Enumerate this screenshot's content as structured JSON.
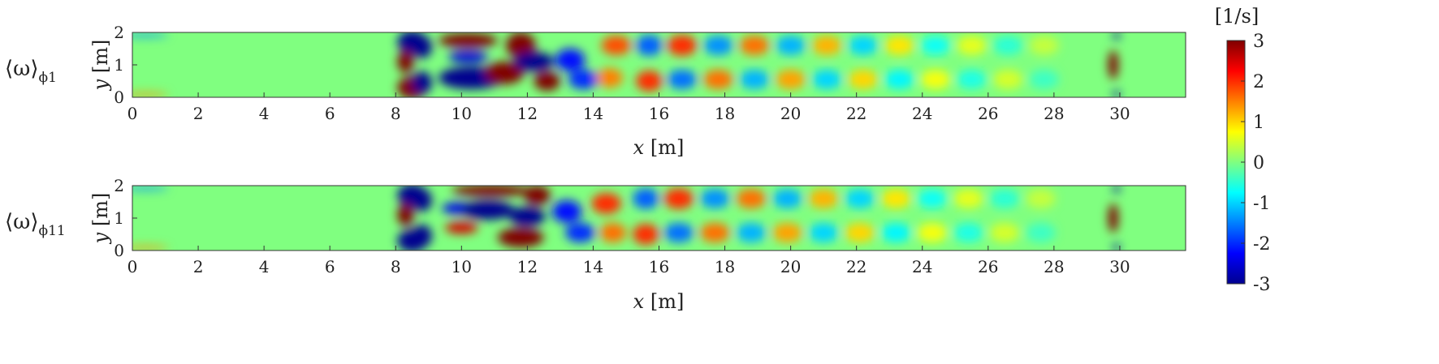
{
  "chart_data": [
    {
      "type": "heatmap",
      "row_label": "⟨ω⟩",
      "row_label_sub": "ϕ1",
      "xlabel_var": "x",
      "xlabel_unit": "[m]",
      "ylabel_var": "y",
      "ylabel_unit": "[m]",
      "xlim": [
        0,
        32
      ],
      "ylim": [
        0,
        2
      ],
      "x_ticks": [
        "0",
        "2",
        "4",
        "6",
        "8",
        "10",
        "12",
        "14",
        "16",
        "18",
        "20",
        "22",
        "24",
        "26",
        "28",
        "30"
      ],
      "x_tick_values": [
        0,
        2,
        4,
        6,
        8,
        10,
        12,
        14,
        16,
        18,
        20,
        22,
        24,
        26,
        28,
        30
      ],
      "y_ticks": [
        "0",
        "1",
        "2"
      ],
      "y_tick_values": [
        0,
        1,
        2
      ],
      "features": [
        {
          "x": 0.4,
          "y": 1.92,
          "value": -1.4,
          "rx": 0.7,
          "ry": 0.06
        },
        {
          "x": 0.4,
          "y": 0.08,
          "value": 1.4,
          "rx": 0.7,
          "ry": 0.06
        },
        {
          "x": 8.5,
          "y": 1.7,
          "value": -3,
          "rx": 0.45,
          "ry": 0.35
        },
        {
          "x": 8.5,
          "y": 0.3,
          "value": 3,
          "rx": 0.45,
          "ry": 0.35
        },
        {
          "x": 8.3,
          "y": 1.1,
          "value": 3,
          "rx": 0.25,
          "ry": 0.35
        },
        {
          "x": 8.8,
          "y": 1.55,
          "value": -3,
          "rx": 0.3,
          "ry": 0.35
        },
        {
          "x": 8.8,
          "y": 0.45,
          "value": -3,
          "rx": 0.3,
          "ry": 0.35
        },
        {
          "x": 10.2,
          "y": 1.75,
          "value": 3,
          "rx": 0.9,
          "ry": 0.22
        },
        {
          "x": 10.2,
          "y": 1.25,
          "value": -2.5,
          "rx": 0.6,
          "ry": 0.18
        },
        {
          "x": 10.3,
          "y": 0.6,
          "value": -3,
          "rx": 1.0,
          "ry": 0.35
        },
        {
          "x": 11.3,
          "y": 0.75,
          "value": 3,
          "rx": 0.6,
          "ry": 0.35
        },
        {
          "x": 11.8,
          "y": 1.6,
          "value": 3,
          "rx": 0.45,
          "ry": 0.4
        },
        {
          "x": 12.2,
          "y": 1.1,
          "value": -3,
          "rx": 0.6,
          "ry": 0.3
        },
        {
          "x": 12.6,
          "y": 0.5,
          "value": 3,
          "rx": 0.4,
          "ry": 0.3
        },
        {
          "x": 13.3,
          "y": 1.15,
          "value": -2.2,
          "rx": 0.45,
          "ry": 0.35
        },
        {
          "x": 13.7,
          "y": 0.55,
          "value": -2,
          "rx": 0.45,
          "ry": 0.3
        },
        {
          "x": 14.7,
          "y": 1.6,
          "value": 1.8,
          "rx": 0.45,
          "ry": 0.3
        },
        {
          "x": 14.5,
          "y": 0.6,
          "value": 1.5,
          "rx": 0.4,
          "ry": 0.3
        },
        {
          "x": 15.7,
          "y": 1.6,
          "value": -1.7,
          "rx": 0.4,
          "ry": 0.32
        },
        {
          "x": 15.7,
          "y": 0.5,
          "value": 2,
          "rx": 0.4,
          "ry": 0.32
        },
        {
          "x": 16.7,
          "y": 1.6,
          "value": 2,
          "rx": 0.45,
          "ry": 0.32
        },
        {
          "x": 16.7,
          "y": 0.55,
          "value": -1.6,
          "rx": 0.45,
          "ry": 0.3
        },
        {
          "x": 17.8,
          "y": 1.6,
          "value": -1.4,
          "rx": 0.45,
          "ry": 0.3
        },
        {
          "x": 17.8,
          "y": 0.55,
          "value": 1.6,
          "rx": 0.45,
          "ry": 0.3
        },
        {
          "x": 18.9,
          "y": 1.6,
          "value": 1.6,
          "rx": 0.45,
          "ry": 0.3
        },
        {
          "x": 18.9,
          "y": 0.55,
          "value": -1.2,
          "rx": 0.45,
          "ry": 0.3
        },
        {
          "x": 20.0,
          "y": 1.6,
          "value": -1.2,
          "rx": 0.45,
          "ry": 0.3
        },
        {
          "x": 20.0,
          "y": 0.55,
          "value": 1.3,
          "rx": 0.45,
          "ry": 0.3
        },
        {
          "x": 21.1,
          "y": 1.6,
          "value": 1.2,
          "rx": 0.45,
          "ry": 0.3
        },
        {
          "x": 21.1,
          "y": 0.55,
          "value": -1.0,
          "rx": 0.45,
          "ry": 0.3
        },
        {
          "x": 22.2,
          "y": 1.6,
          "value": -1.0,
          "rx": 0.45,
          "ry": 0.3
        },
        {
          "x": 22.2,
          "y": 0.55,
          "value": 1.0,
          "rx": 0.45,
          "ry": 0.3
        },
        {
          "x": 23.3,
          "y": 1.6,
          "value": 0.9,
          "rx": 0.45,
          "ry": 0.3
        },
        {
          "x": 23.3,
          "y": 0.55,
          "value": -0.8,
          "rx": 0.45,
          "ry": 0.3
        },
        {
          "x": 24.4,
          "y": 1.6,
          "value": -0.7,
          "rx": 0.45,
          "ry": 0.3
        },
        {
          "x": 24.4,
          "y": 0.55,
          "value": 0.7,
          "rx": 0.45,
          "ry": 0.3
        },
        {
          "x": 25.5,
          "y": 1.6,
          "value": 0.6,
          "rx": 0.45,
          "ry": 0.3
        },
        {
          "x": 25.5,
          "y": 0.55,
          "value": -0.6,
          "rx": 0.45,
          "ry": 0.3
        },
        {
          "x": 26.6,
          "y": 1.6,
          "value": -0.5,
          "rx": 0.45,
          "ry": 0.3
        },
        {
          "x": 26.6,
          "y": 0.55,
          "value": 0.5,
          "rx": 0.45,
          "ry": 0.3
        },
        {
          "x": 27.7,
          "y": 1.6,
          "value": 0.4,
          "rx": 0.45,
          "ry": 0.3
        },
        {
          "x": 27.7,
          "y": 0.55,
          "value": -0.4,
          "rx": 0.45,
          "ry": 0.3
        },
        {
          "x": 29.8,
          "y": 1.0,
          "value": 3,
          "rx": 0.15,
          "ry": 0.45
        },
        {
          "x": 29.9,
          "y": 1.9,
          "value": -3,
          "rx": 0.1,
          "ry": 0.12
        },
        {
          "x": 29.9,
          "y": 0.1,
          "value": -3,
          "rx": 0.1,
          "ry": 0.12
        }
      ]
    },
    {
      "type": "heatmap",
      "row_label": "⟨ω⟩",
      "row_label_sub": "ϕ11",
      "xlabel_var": "x",
      "xlabel_unit": "[m]",
      "ylabel_var": "y",
      "ylabel_unit": "[m]",
      "xlim": [
        0,
        32
      ],
      "ylim": [
        0,
        2
      ],
      "x_ticks": [
        "0",
        "2",
        "4",
        "6",
        "8",
        "10",
        "12",
        "14",
        "16",
        "18",
        "20",
        "22",
        "24",
        "26",
        "28",
        "30"
      ],
      "x_tick_values": [
        0,
        2,
        4,
        6,
        8,
        10,
        12,
        14,
        16,
        18,
        20,
        22,
        24,
        26,
        28,
        30
      ],
      "y_ticks": [
        "0",
        "1",
        "2"
      ],
      "y_tick_values": [
        0,
        1,
        2
      ],
      "features": [
        {
          "x": 0.4,
          "y": 1.92,
          "value": -1.4,
          "rx": 0.7,
          "ry": 0.06
        },
        {
          "x": 0.4,
          "y": 0.08,
          "value": 1.4,
          "rx": 0.7,
          "ry": 0.06
        },
        {
          "x": 8.5,
          "y": 1.7,
          "value": -3,
          "rx": 0.45,
          "ry": 0.35
        },
        {
          "x": 8.5,
          "y": 0.3,
          "value": -3,
          "rx": 0.45,
          "ry": 0.35
        },
        {
          "x": 8.3,
          "y": 1.1,
          "value": 3,
          "rx": 0.25,
          "ry": 0.35
        },
        {
          "x": 8.8,
          "y": 1.55,
          "value": -3,
          "rx": 0.3,
          "ry": 0.35
        },
        {
          "x": 8.8,
          "y": 0.45,
          "value": -3,
          "rx": 0.3,
          "ry": 0.35
        },
        {
          "x": 10.9,
          "y": 1.85,
          "value": 3,
          "rx": 1.2,
          "ry": 0.18
        },
        {
          "x": 9.9,
          "y": 1.3,
          "value": -2.4,
          "rx": 0.5,
          "ry": 0.18
        },
        {
          "x": 10.0,
          "y": 0.7,
          "value": 2.5,
          "rx": 0.5,
          "ry": 0.18
        },
        {
          "x": 10.8,
          "y": 1.25,
          "value": -3,
          "rx": 0.8,
          "ry": 0.3
        },
        {
          "x": 12.0,
          "y": 1.05,
          "value": -3,
          "rx": 0.55,
          "ry": 0.3
        },
        {
          "x": 11.8,
          "y": 0.4,
          "value": 3,
          "rx": 0.7,
          "ry": 0.3
        },
        {
          "x": 12.3,
          "y": 1.7,
          "value": 3,
          "rx": 0.4,
          "ry": 0.3
        },
        {
          "x": 13.2,
          "y": 1.2,
          "value": -2.2,
          "rx": 0.45,
          "ry": 0.35
        },
        {
          "x": 13.6,
          "y": 0.55,
          "value": -2,
          "rx": 0.45,
          "ry": 0.3
        },
        {
          "x": 14.4,
          "y": 1.45,
          "value": 2,
          "rx": 0.45,
          "ry": 0.32
        },
        {
          "x": 14.6,
          "y": 0.55,
          "value": 1.6,
          "rx": 0.4,
          "ry": 0.3
        },
        {
          "x": 15.6,
          "y": 1.6,
          "value": -1.7,
          "rx": 0.4,
          "ry": 0.32
        },
        {
          "x": 15.6,
          "y": 0.5,
          "value": 2,
          "rx": 0.4,
          "ry": 0.32
        },
        {
          "x": 16.6,
          "y": 1.6,
          "value": 2,
          "rx": 0.45,
          "ry": 0.32
        },
        {
          "x": 16.6,
          "y": 0.55,
          "value": -1.6,
          "rx": 0.45,
          "ry": 0.3
        },
        {
          "x": 17.7,
          "y": 1.6,
          "value": -1.4,
          "rx": 0.45,
          "ry": 0.3
        },
        {
          "x": 17.7,
          "y": 0.55,
          "value": 1.6,
          "rx": 0.45,
          "ry": 0.3
        },
        {
          "x": 18.8,
          "y": 1.6,
          "value": 1.6,
          "rx": 0.45,
          "ry": 0.3
        },
        {
          "x": 18.8,
          "y": 0.55,
          "value": -1.2,
          "rx": 0.45,
          "ry": 0.3
        },
        {
          "x": 19.9,
          "y": 1.6,
          "value": -1.2,
          "rx": 0.45,
          "ry": 0.3
        },
        {
          "x": 19.9,
          "y": 0.55,
          "value": 1.3,
          "rx": 0.45,
          "ry": 0.3
        },
        {
          "x": 21.0,
          "y": 1.6,
          "value": 1.2,
          "rx": 0.45,
          "ry": 0.3
        },
        {
          "x": 21.0,
          "y": 0.55,
          "value": -1.0,
          "rx": 0.45,
          "ry": 0.3
        },
        {
          "x": 22.1,
          "y": 1.6,
          "value": -1.0,
          "rx": 0.45,
          "ry": 0.3
        },
        {
          "x": 22.1,
          "y": 0.55,
          "value": 1.0,
          "rx": 0.45,
          "ry": 0.3
        },
        {
          "x": 23.2,
          "y": 1.6,
          "value": 0.9,
          "rx": 0.45,
          "ry": 0.3
        },
        {
          "x": 23.2,
          "y": 0.55,
          "value": -0.8,
          "rx": 0.45,
          "ry": 0.3
        },
        {
          "x": 24.3,
          "y": 1.6,
          "value": -0.7,
          "rx": 0.45,
          "ry": 0.3
        },
        {
          "x": 24.3,
          "y": 0.55,
          "value": 0.7,
          "rx": 0.45,
          "ry": 0.3
        },
        {
          "x": 25.4,
          "y": 1.6,
          "value": 0.6,
          "rx": 0.45,
          "ry": 0.3
        },
        {
          "x": 25.4,
          "y": 0.55,
          "value": -0.6,
          "rx": 0.45,
          "ry": 0.3
        },
        {
          "x": 26.5,
          "y": 1.6,
          "value": -0.5,
          "rx": 0.45,
          "ry": 0.3
        },
        {
          "x": 26.5,
          "y": 0.55,
          "value": 0.5,
          "rx": 0.45,
          "ry": 0.3
        },
        {
          "x": 27.6,
          "y": 1.6,
          "value": 0.4,
          "rx": 0.45,
          "ry": 0.3
        },
        {
          "x": 27.6,
          "y": 0.55,
          "value": -0.4,
          "rx": 0.45,
          "ry": 0.3
        },
        {
          "x": 29.8,
          "y": 1.0,
          "value": 3,
          "rx": 0.15,
          "ry": 0.45
        },
        {
          "x": 29.9,
          "y": 1.9,
          "value": -3,
          "rx": 0.1,
          "ry": 0.12
        },
        {
          "x": 29.9,
          "y": 0.1,
          "value": -3,
          "rx": 0.1,
          "ry": 0.12
        }
      ]
    }
  ],
  "colorbar": {
    "label": "[1/s]",
    "range": [
      -3,
      3
    ],
    "ticks": [
      "3",
      "2",
      "1",
      "0",
      "-1",
      "-2",
      "-3"
    ],
    "tick_values": [
      3,
      2,
      1,
      0,
      -1,
      -2,
      -3
    ],
    "colormap": "jet",
    "colormap_stops": [
      "#00008f",
      "#0000ff",
      "#0080ff",
      "#00ffff",
      "#80ff80",
      "#ffff00",
      "#ff8000",
      "#ff0000",
      "#800000"
    ],
    "background_value": 0
  }
}
